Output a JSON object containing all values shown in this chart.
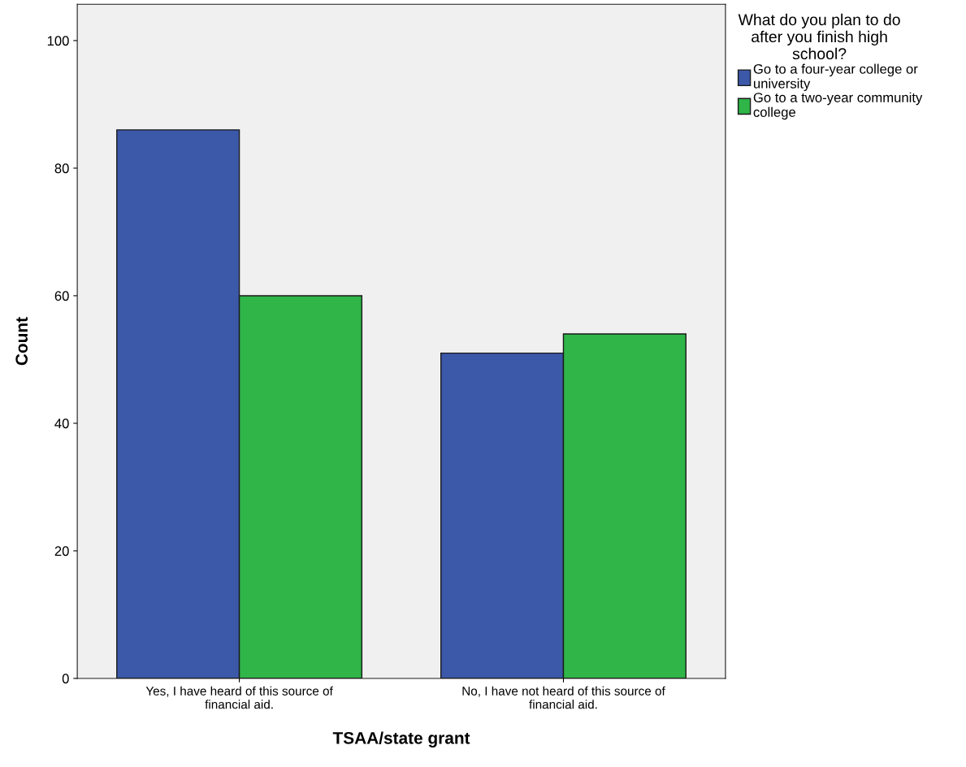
{
  "chart_data": {
    "type": "bar",
    "xlabel": "TSAA/state grant",
    "ylabel": "Count",
    "legend_title": "What do you plan to do\nafter you finish high\nschool?",
    "categories": [
      "Yes, I have heard of this source of\nfinancial aid.",
      "No, I have not heard of this source of\nfinancial aid."
    ],
    "series": [
      {
        "name": "Go to a four-year college or\nuniversity",
        "color": "#3c58a8",
        "values": [
          86,
          51
        ]
      },
      {
        "name": "Go to a two-year community\ncollege",
        "color": "#2fb548",
        "values": [
          60,
          54
        ]
      }
    ],
    "ylim": [
      0,
      105.7
    ],
    "yticks": [
      0,
      20,
      40,
      60,
      80,
      100
    ],
    "grid": false,
    "legend": "top right"
  }
}
